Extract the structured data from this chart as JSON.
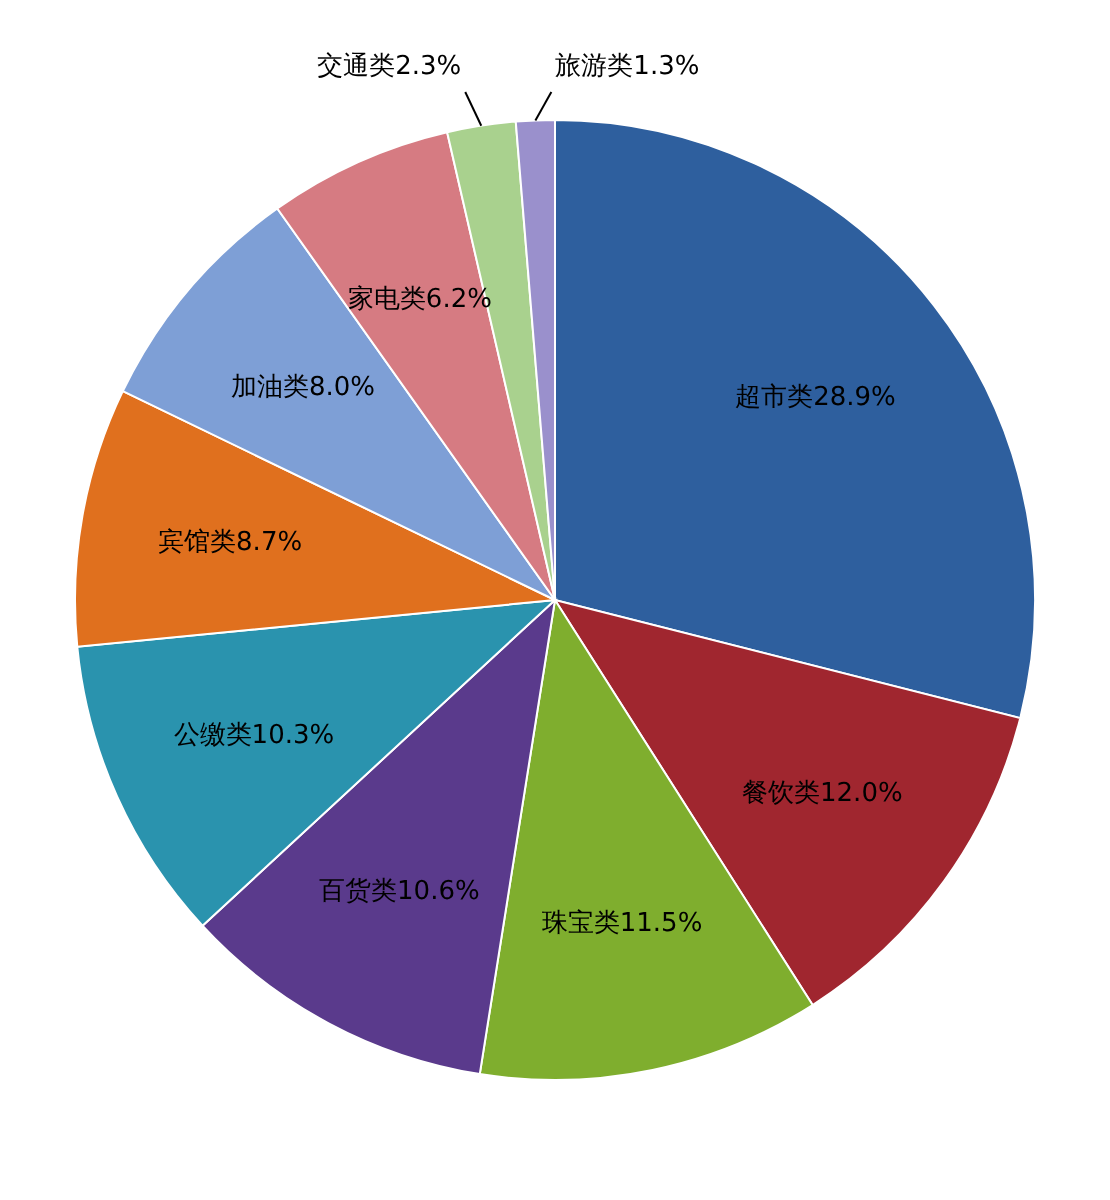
{
  "chart_data": {
    "type": "pie",
    "categories": [
      "超市类",
      "餐饮类",
      "珠宝类",
      "百货类",
      "公缴类",
      "宾馆类",
      "加油类",
      "家电类",
      "交通类",
      "旅游类"
    ],
    "values": [
      28.9,
      12.0,
      11.5,
      10.6,
      10.3,
      8.7,
      8.0,
      6.2,
      2.3,
      1.3
    ],
    "value_labels": [
      "28.9%",
      "12.0%",
      "11.5%",
      "10.6%",
      "10.3%",
      "8.7%",
      "8.0%",
      "6.2%",
      "2.3%",
      "1.3%"
    ],
    "colors": [
      "#2e5f9e",
      "#a0262f",
      "#7fae2e",
      "#5a3a8c",
      "#2a93ae",
      "#e0701e",
      "#7e9fd6",
      "#d67b82",
      "#a9d18e",
      "#9a90cc"
    ],
    "legend": false
  }
}
